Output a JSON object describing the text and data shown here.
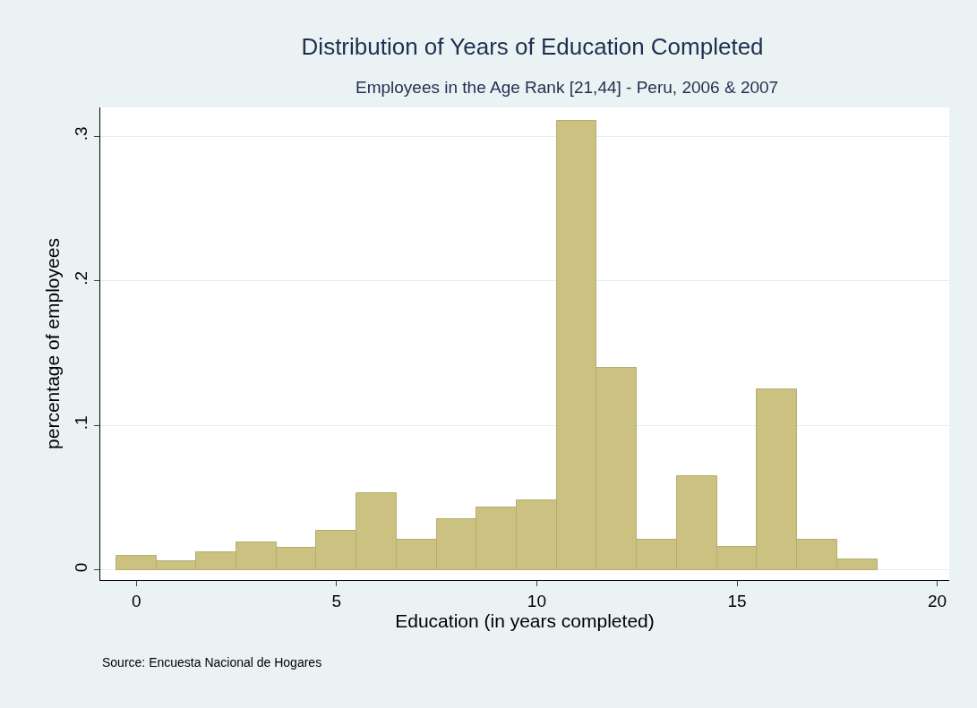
{
  "chart_data": {
    "type": "histogram",
    "title": "Distribution of Years of Education Completed",
    "subtitle": "Employees in the Age Rank [21,44] - Peru, 2006 & 2007",
    "xlabel": "Education (in years completed)",
    "ylabel": "percentage of employees",
    "annotations": [
      "Source: Encuesta Nacional de Hogares"
    ],
    "bins": [
      -0.5,
      0.5,
      1.5,
      2.5,
      3.5,
      4.5,
      5.5,
      6.5,
      7.5,
      8.5,
      9.5,
      10.5,
      11.5,
      12.5,
      13.5,
      14.5,
      15.5,
      16.5,
      17.5,
      18.5
    ],
    "values": [
      0.01,
      0.006,
      0.012,
      0.019,
      0.015,
      0.027,
      0.053,
      0.021,
      0.035,
      0.043,
      0.048,
      0.311,
      0.14,
      0.021,
      0.065,
      0.016,
      0.125,
      0.021,
      0.007
    ],
    "color": "#cbc281",
    "xlim": [
      -0.9,
      20.3
    ],
    "xticks": [
      0,
      5,
      10,
      15,
      20
    ],
    "ylim": [
      -0.007,
      0.32
    ],
    "yticks": [
      {
        "value": 0,
        "label": "0"
      },
      {
        "value": 0.1,
        "label": ".1"
      },
      {
        "value": 0.2,
        "label": ".2"
      },
      {
        "value": 0.3,
        "label": ".3"
      }
    ],
    "grid": "y"
  }
}
